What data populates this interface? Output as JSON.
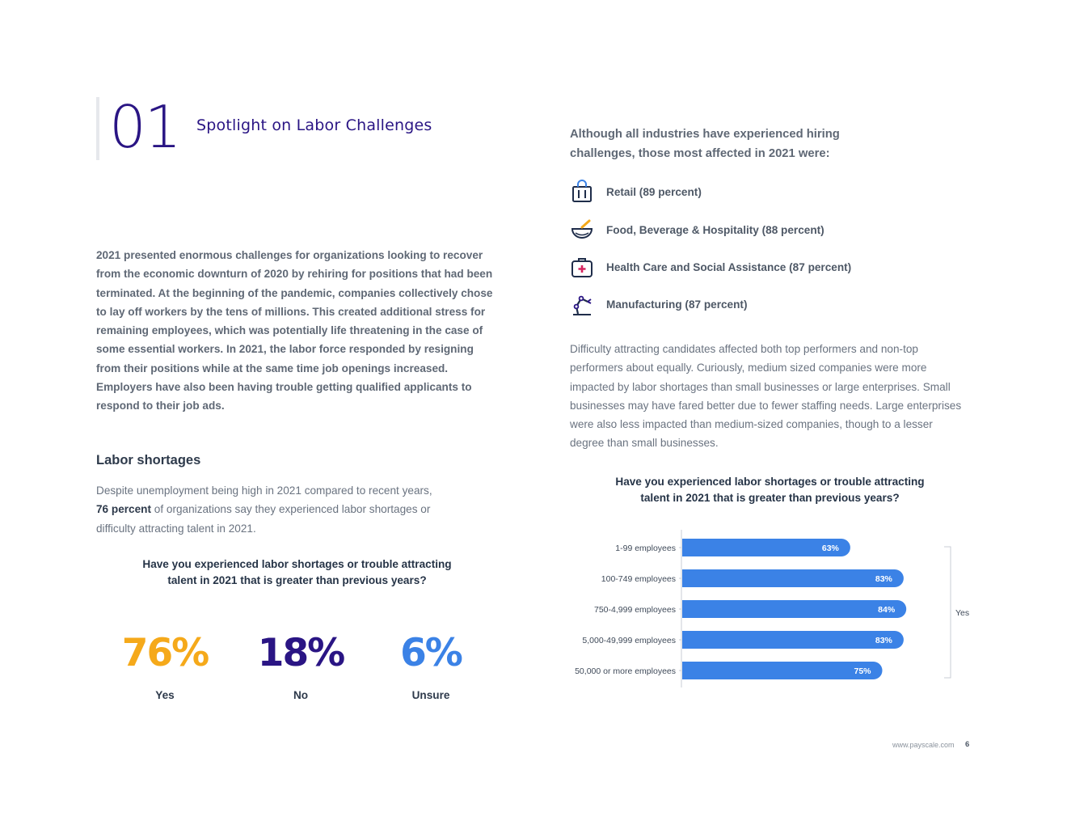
{
  "header": {
    "section_number": "01",
    "section_title": "Spotlight on Labor Challenges"
  },
  "left": {
    "intro": "2021 presented enormous challenges for organizations looking to recover from the economic downturn of 2020 by rehiring for positions that had been terminated. At the beginning of the pandemic, companies collectively chose to lay off workers by the tens of millions. This created additional stress for remaining employees, which was potentially life threatening in the case of some essential workers. In 2021, the labor force responded by resigning from their positions while at the same time job openings increased. Employers have also been having trouble getting qualified applicants to respond to their job ads.",
    "shortage_heading": "Labor shortages",
    "shortage_text_start": "Despite unemployment being high in 2021 compared to recent years,",
    "shortage_text_bold": "76 percent",
    "shortage_text_end": "of organizations say they experienced labor shortages or difficulty attracting talent in 2021.",
    "question": "Have you experienced labor shortages or trouble attracting talent in 2021 that is greater than previous years?",
    "stats": [
      {
        "value": "76%",
        "label": "Yes",
        "color": "#f5a91a"
      },
      {
        "value": "18%",
        "label": "No",
        "color": "#2a1584"
      },
      {
        "value": "6%",
        "label": "Unsure",
        "color": "#3b82e6"
      }
    ]
  },
  "right": {
    "lead": "Although all industries have experienced hiring challenges, those most affected in 2021 were:",
    "industries": [
      {
        "icon": "shopping-bag-icon",
        "label": "Retail (89 percent)"
      },
      {
        "icon": "food-bowl-icon",
        "label": "Food, Beverage & Hospitality (88 percent)"
      },
      {
        "icon": "medical-kit-icon",
        "label": "Health Care and Social Assistance (87 percent)"
      },
      {
        "icon": "robotic-arm-icon",
        "label": "Manufacturing (87 percent)"
      }
    ],
    "paragraph": "Difficulty attracting candidates affected both top performers and non-top performers about equally. Curiously, medium sized companies were more impacted by labor shortages than small businesses or large enterprises. Small businesses may have fared better due to fewer staffing needs. Large enterprises were also less impacted than medium-sized companies, though to a lesser degree than small businesses.",
    "question": "Have you experienced labor shortages or trouble attracting talent in 2021 that is greater than previous years?"
  },
  "chart_data": {
    "type": "bar",
    "orientation": "horizontal",
    "categories": [
      "1-99 employees",
      "100-749 employees",
      "750-4,999 employees",
      "5,000-49,999 employees",
      "50,000 or more employees"
    ],
    "values": [
      63,
      83,
      84,
      83,
      75
    ],
    "value_labels": [
      "63%",
      "83%",
      "84%",
      "83%",
      "75%"
    ],
    "bracket_label": "Yes",
    "bar_color": "#3b82e6",
    "xlim": [
      0,
      100
    ],
    "grid": false
  },
  "footer": {
    "url": "www.payscale.com",
    "page": "6"
  }
}
